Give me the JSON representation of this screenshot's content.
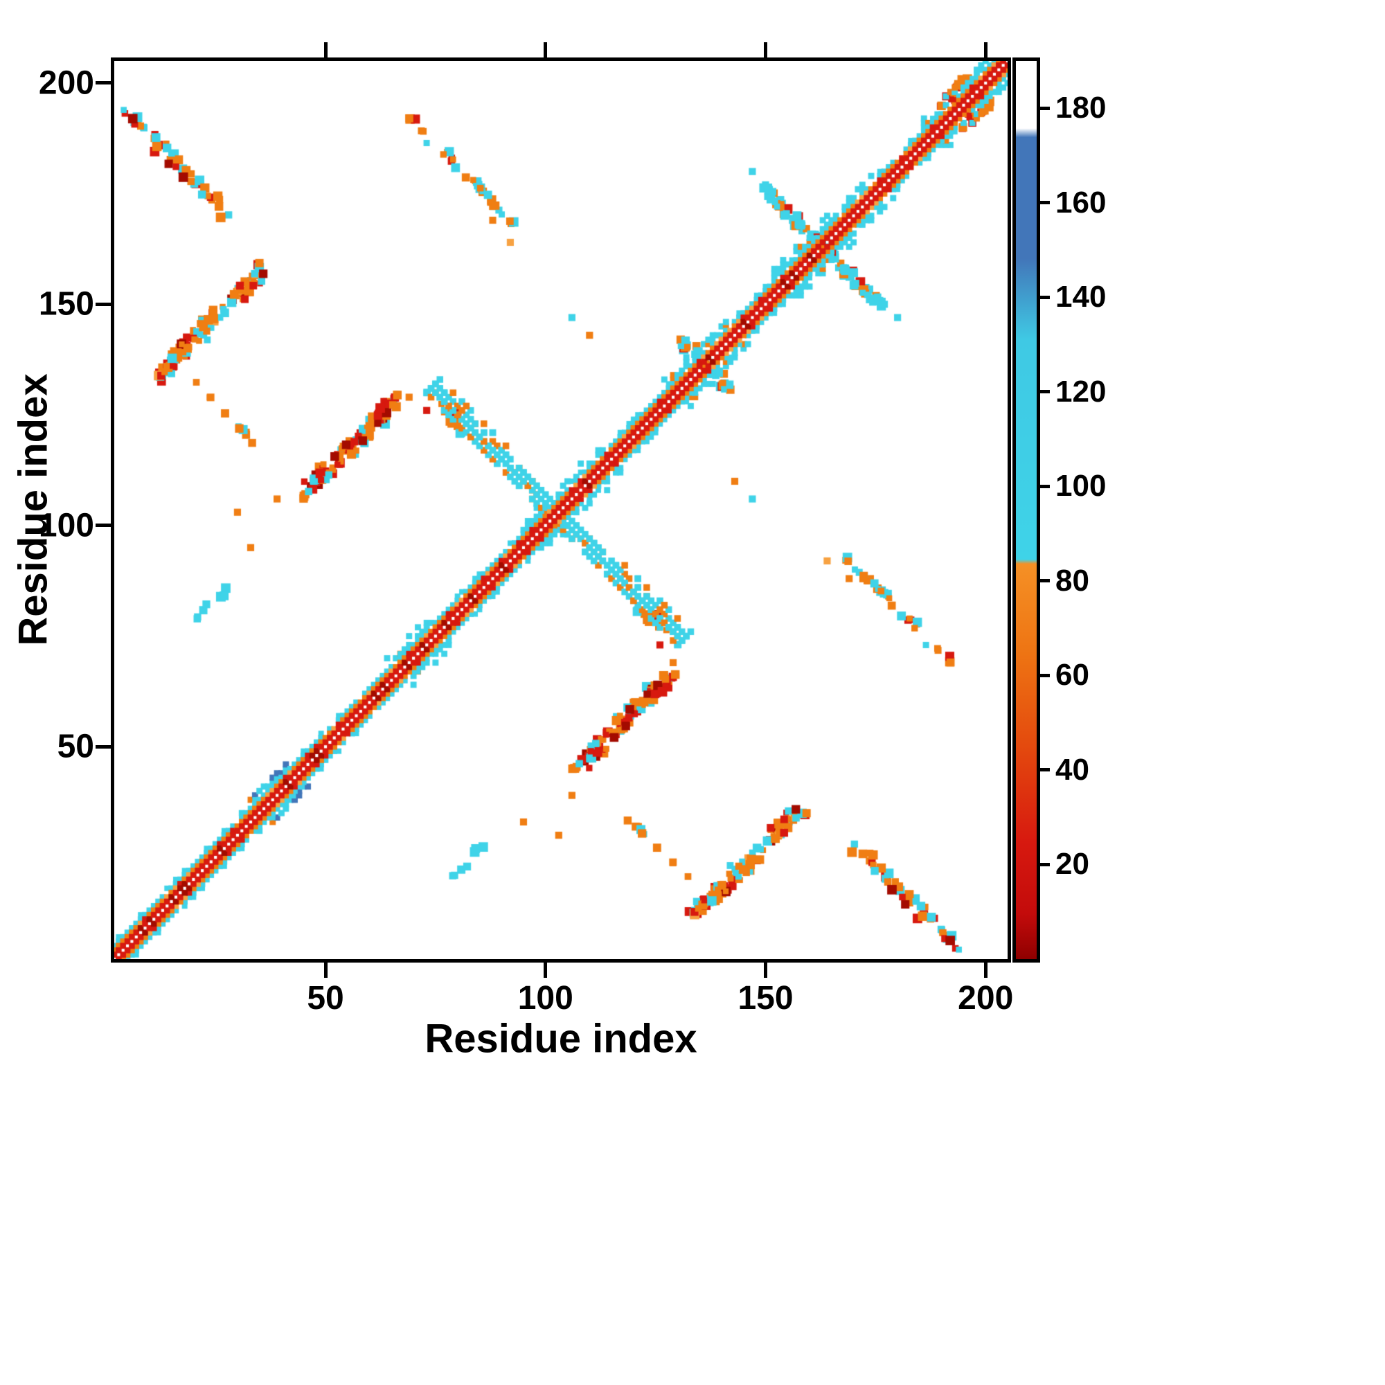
{
  "figure": {
    "xlabel": "Residue index",
    "ylabel": "Residue index"
  },
  "chart_data": {
    "type": "heatmap",
    "title": "",
    "xlabel": "Residue index",
    "ylabel": "Residue index",
    "xlim": [
      2,
      205
    ],
    "ylim": [
      2,
      205
    ],
    "xticks": [
      50,
      100,
      150,
      200
    ],
    "yticks": [
      50,
      100,
      150,
      200
    ],
    "grid": false,
    "symmetric": true,
    "palette": {
      "red": "#d7190f",
      "darkred": "#a30b00",
      "orange": "#f07e13",
      "lightorange": "#f7a242",
      "cyan": "#3fd3e8",
      "blue": "#4276b9",
      "white": "#ffffff"
    },
    "colorbar": {
      "vmin": 0,
      "vmax": 190,
      "ticks": [
        20,
        40,
        60,
        80,
        100,
        120,
        140,
        160,
        180
      ],
      "stops": [
        [
          0,
          "#8f0000"
        ],
        [
          0.05,
          "#c30b0b"
        ],
        [
          0.13,
          "#d7190f"
        ],
        [
          0.24,
          "#e44b0e"
        ],
        [
          0.34,
          "#ee7413"
        ],
        [
          0.44,
          "#f59025"
        ],
        [
          0.445,
          "#3fd3e8"
        ],
        [
          0.69,
          "#3fc9e4"
        ],
        [
          0.78,
          "#4276b9"
        ],
        [
          0.915,
          "#4276b9"
        ],
        [
          0.925,
          "#ffffff"
        ],
        [
          1,
          "#ffffff"
        ]
      ]
    },
    "diagonal": {
      "from": 2,
      "to": 204,
      "core_color": "red",
      "inner_color": "orange",
      "outer_color": "cyan",
      "wide_segments": [
        {
          "from": 31,
          "to": 41,
          "blue": true
        },
        {
          "from": 63,
          "to": 74
        },
        {
          "from": 95,
          "to": 113
        },
        {
          "from": 127,
          "to": 142
        },
        {
          "from": 152,
          "to": 174
        },
        {
          "from": 186,
          "to": 204
        }
      ]
    },
    "hairpin": {
      "x_start": 74,
      "y_start": 131,
      "x_end": 131,
      "y_end": 74
    },
    "clusters": [
      {
        "name": "contact-block-A",
        "cx": 24,
        "cy": 146,
        "len": 24,
        "slope": 1,
        "width": 4,
        "n": 110,
        "colors": {
          "orange": 0.42,
          "red": 0.2,
          "darkred": 0.08,
          "cyan": 0.25,
          "lightorange": 0.05
        }
      },
      {
        "name": "contact-arc-B",
        "cx": 17,
        "cy": 181,
        "len": 26,
        "slope": -1,
        "width": 3,
        "n": 46,
        "colors": {
          "cyan": 0.4,
          "orange": 0.42,
          "red": 0.12,
          "darkred": 0.06
        }
      },
      {
        "name": "contact-arc-C",
        "cx": 81,
        "cy": 180,
        "len": 24,
        "slope": -1,
        "width": 2.6,
        "n": 34,
        "colors": {
          "orange": 0.55,
          "cyan": 0.3,
          "red": 0.15
        }
      },
      {
        "name": "contact-block-D",
        "cx": 56,
        "cy": 118,
        "len": 22,
        "slope": 1,
        "width": 4,
        "n": 100,
        "colors": {
          "orange": 0.42,
          "red": 0.25,
          "cyan": 0.25,
          "darkred": 0.08
        }
      },
      {
        "name": "contact-sparse-E",
        "cx": 27,
        "cy": 126,
        "len": 14,
        "slope": -1,
        "width": 2,
        "n": 10,
        "colors": {
          "orange": 0.8,
          "cyan": 0.2
        }
      },
      {
        "name": "contact-sparse-F",
        "cx": 24,
        "cy": 82,
        "len": 7,
        "slope": 1,
        "width": 2,
        "n": 7,
        "colors": {
          "cyan": 0.85,
          "orange": 0.15
        }
      },
      {
        "name": "contact-cross-G",
        "cx": 163,
        "cy": 163,
        "len": 28,
        "slope": -1,
        "width": 2.2,
        "n": 44,
        "colors": {
          "cyan": 0.68,
          "orange": 0.24,
          "red": 0.08
        }
      },
      {
        "name": "contact-blob-H",
        "cx": 134,
        "cy": 139,
        "len": 10,
        "slope": -1,
        "width": 2.6,
        "n": 16,
        "colors": {
          "orange": 0.55,
          "cyan": 0.28,
          "red": 0.17
        }
      },
      {
        "name": "contact-blob-I",
        "cx": 193,
        "cy": 198,
        "len": 7,
        "slope": 1,
        "width": 3,
        "n": 14,
        "colors": {
          "orange": 0.6,
          "red": 0.3,
          "lightorange": 0.1
        }
      },
      {
        "name": "hairpin-base",
        "cx": 77,
        "cy": 126,
        "len": 8,
        "slope": -1,
        "width": 3,
        "n": 12,
        "colors": {
          "orange": 0.6,
          "red": 0.2,
          "cyan": 0.2
        }
      }
    ],
    "points": [
      {
        "x": 39,
        "y": 106,
        "c": "orange"
      },
      {
        "x": 33,
        "y": 95,
        "c": "orange"
      },
      {
        "x": 30,
        "y": 103,
        "c": "orange"
      },
      {
        "x": 88,
        "y": 169,
        "c": "orange"
      },
      {
        "x": 92,
        "y": 164,
        "c": "lightorange"
      },
      {
        "x": 147,
        "y": 180,
        "c": "cyan"
      },
      {
        "x": 150,
        "y": 177,
        "c": "cyan"
      },
      {
        "x": 73,
        "y": 126,
        "c": "red"
      },
      {
        "x": 69,
        "y": 129,
        "c": "orange"
      },
      {
        "x": 110,
        "y": 143,
        "c": "orange"
      },
      {
        "x": 106,
        "y": 147,
        "c": "cyan"
      }
    ]
  }
}
